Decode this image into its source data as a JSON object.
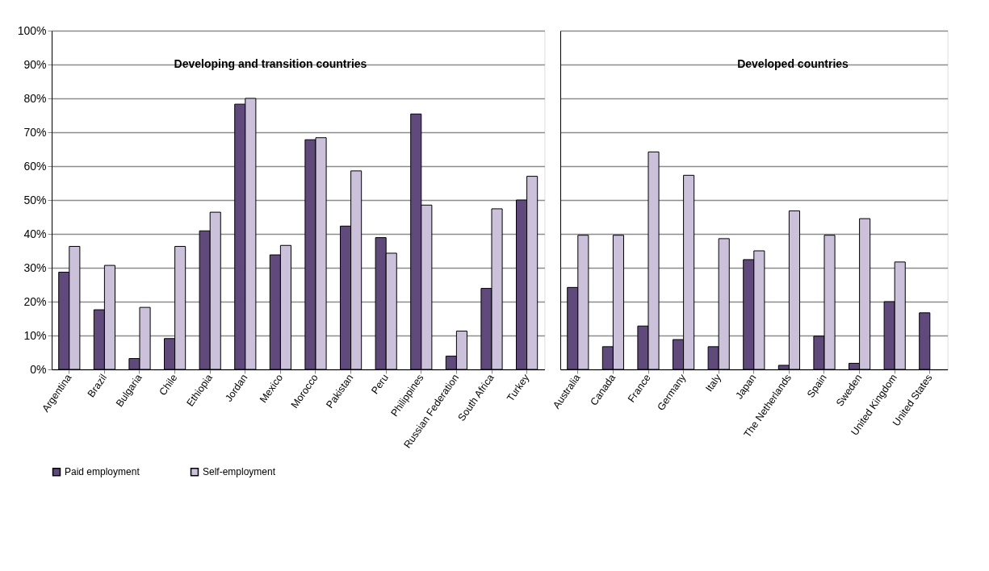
{
  "chart_data": [
    {
      "type": "bar",
      "annotations": [
        "Developing and transition countries"
      ],
      "categories": [
        "Argentina",
        "Brazil",
        "Bulgaria",
        "Chile",
        "Ethiopia",
        "Jordan",
        "Mexico",
        "Morocco",
        "Pakistan",
        "Peru",
        "Philippines",
        "Russian Federation",
        "South Africa",
        "Turkey"
      ],
      "series": [
        {
          "name": "Paid employment",
          "color": "#604a7b",
          "values": [
            28.7,
            17.6,
            3.2,
            9.1,
            40.9,
            78.3,
            33.8,
            67.8,
            42.3,
            38.9,
            75.4,
            3.9,
            23.9,
            50.0
          ]
        },
        {
          "name": "Self-employment",
          "color": "#ccc1da",
          "values": [
            36.3,
            30.7,
            18.3,
            36.3,
            46.4,
            80.0,
            36.6,
            68.4,
            58.6,
            34.3,
            48.5,
            11.3,
            47.4,
            57.0
          ]
        }
      ],
      "ylim": [
        0,
        100
      ],
      "yticks": [
        {
          "value": 0,
          "label": "0%"
        },
        {
          "value": 10,
          "label": "10%"
        },
        {
          "value": 20,
          "label": "20%"
        },
        {
          "value": 30,
          "label": "30%"
        },
        {
          "value": 40,
          "label": "40%"
        },
        {
          "value": 50,
          "label": "50%"
        },
        {
          "value": 60,
          "label": "60%"
        },
        {
          "value": 70,
          "label": "70%"
        },
        {
          "value": 80,
          "label": "80%"
        },
        {
          "value": 90,
          "label": "90%"
        },
        {
          "value": 100,
          "label": "100%"
        }
      ],
      "grid": "y",
      "legend": "bottom"
    },
    {
      "type": "bar",
      "annotations": [
        "Developed countries"
      ],
      "categories": [
        "Australia",
        "Canada",
        "France",
        "Germany",
        "Italy",
        "Japan",
        "The Netherlands",
        "Spain",
        "Sweden",
        "United Kingdom",
        "United States"
      ],
      "series": [
        {
          "name": "Paid employment",
          "color": "#604a7b",
          "values": [
            24.2,
            6.7,
            12.8,
            8.8,
            6.7,
            32.4,
            1.2,
            9.8,
            1.8,
            20.0,
            16.7
          ]
        },
        {
          "name": "Self-employment",
          "color": "#ccc1da",
          "values": [
            39.6,
            39.6,
            64.2,
            57.3,
            38.6,
            35.0,
            46.8,
            39.6,
            44.5,
            31.7,
            null
          ]
        }
      ],
      "ylim": [
        0,
        100
      ],
      "yticks": [
        {
          "value": 0,
          "label": null
        },
        {
          "value": 10,
          "label": null
        },
        {
          "value": 20,
          "label": null
        },
        {
          "value": 30,
          "label": null
        },
        {
          "value": 40,
          "label": null
        },
        {
          "value": 50,
          "label": null
        },
        {
          "value": 60,
          "label": null
        },
        {
          "value": 70,
          "label": null
        },
        {
          "value": 80,
          "label": null
        },
        {
          "value": 90,
          "label": null
        },
        {
          "value": 100,
          "label": null
        }
      ],
      "grid": "y",
      "tick_labels": "x",
      "legend": "bottom"
    }
  ]
}
